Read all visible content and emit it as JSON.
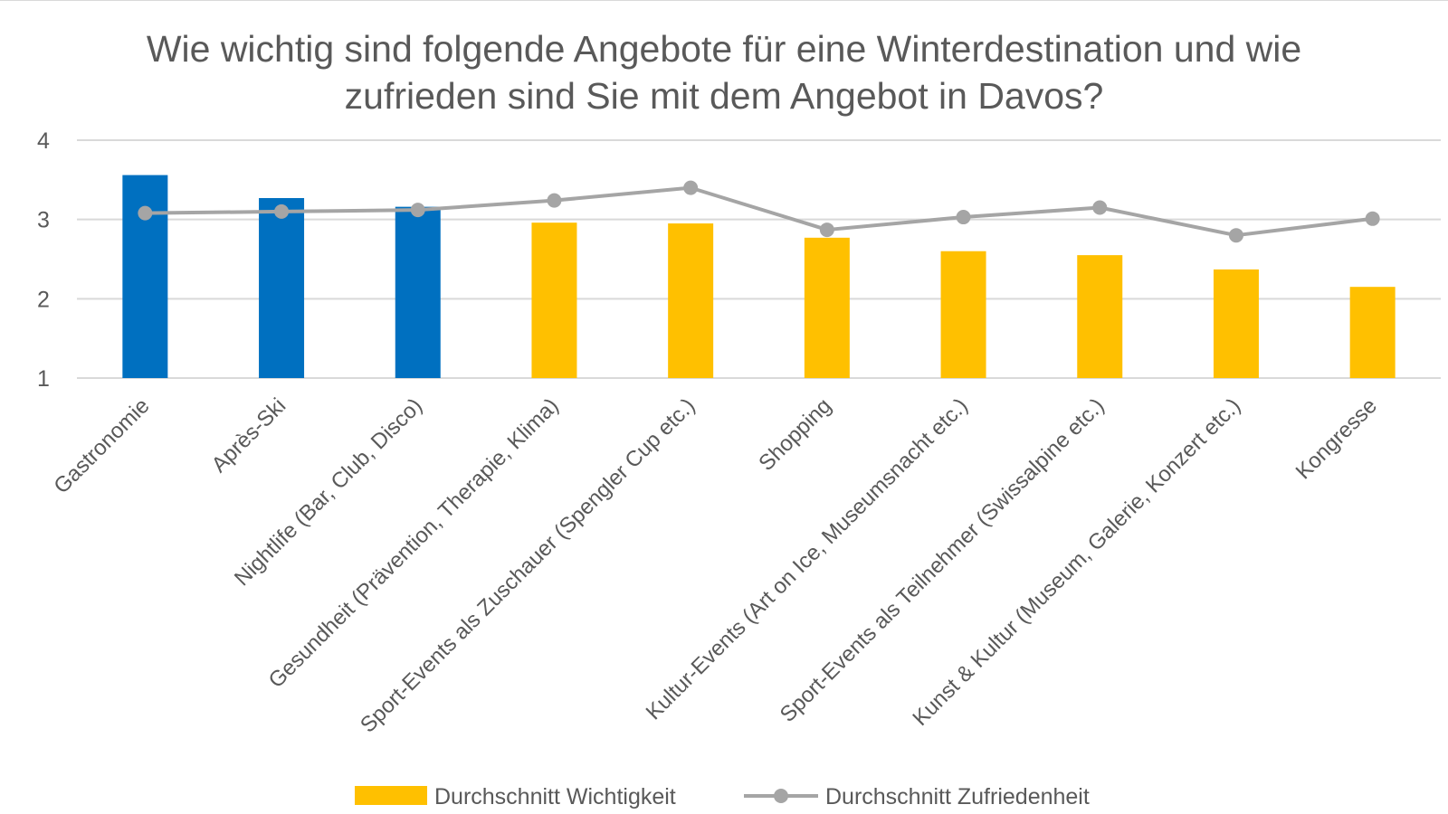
{
  "chart_data": {
    "type": "bar+line",
    "title_lines": [
      "Wie wichtig sind folgende Angebote für eine Winterdestination und wie",
      "zufrieden sind Sie mit dem Angebot in Davos?"
    ],
    "categories": [
      "Gastronomie",
      "Après-Ski",
      "Nightlife (Bar, Club, Disco)",
      "Gesundheit (Prävention, Therapie, Klima)",
      "Sport-Events als Zuschauer (Spengler Cup etc.)",
      "Shopping",
      "Kultur-Events (Art on Ice, Museumsnacht etc.)",
      "Sport-Events als Teilnehmer (Swissalpine etc.)",
      "Kunst & Kultur (Museum, Galerie, Konzert etc.)",
      "Kongresse"
    ],
    "series": [
      {
        "name": "Durchschnitt Wichtigkeit",
        "type": "bar",
        "values": [
          3.56,
          3.27,
          3.16,
          2.96,
          2.95,
          2.77,
          2.6,
          2.55,
          2.37,
          2.15
        ],
        "color": "#ffc000",
        "highlight_color": "#0070c0",
        "highlight_indices": [
          0,
          1,
          2
        ]
      },
      {
        "name": "Durchschnitt Zufriedenheit",
        "type": "line",
        "values": [
          3.08,
          3.1,
          3.12,
          3.24,
          3.4,
          2.87,
          3.03,
          3.15,
          2.8,
          3.01
        ],
        "color": "#a5a5a5"
      }
    ],
    "ylim": [
      1,
      4
    ],
    "yticks": [
      1,
      2,
      3,
      4
    ],
    "grid": true,
    "legend_position": "bottom"
  }
}
